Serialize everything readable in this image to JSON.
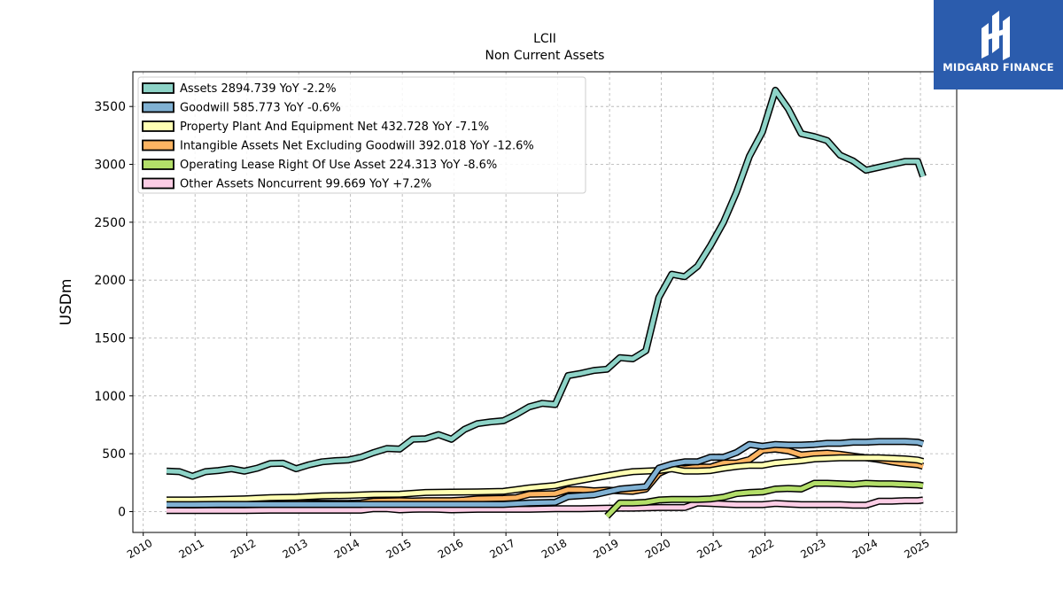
{
  "header": {
    "title": "LCII",
    "subtitle": "Non Current  Assets"
  },
  "logo": {
    "text": "MIDGARD FINANCE",
    "color": "#2b5cad"
  },
  "chart_data": {
    "type": "line",
    "title": "LCII",
    "subtitle": "Non Current  Assets",
    "xlabel": "",
    "ylabel": "USDm",
    "xlim": [
      2009.8,
      2025.7
    ],
    "ylim": [
      -180,
      3800
    ],
    "xticks": [
      "2010",
      "2011",
      "2012",
      "2013",
      "2014",
      "2015",
      "2016",
      "2017",
      "2018",
      "2019",
      "2020",
      "2021",
      "2022",
      "2023",
      "2024",
      "2025"
    ],
    "yticks": [
      0,
      500,
      1000,
      1500,
      2000,
      2500,
      3000,
      3500
    ],
    "grid": true,
    "legend_position": "top-left",
    "series": [
      {
        "name": "Assets",
        "legend": "Assets  2894.739 YoY -2.2%",
        "color": "#8dd3c7",
        "x": [
          2010.45,
          2010.7,
          2010.95,
          2011.2,
          2011.45,
          2011.7,
          2011.95,
          2012.2,
          2012.45,
          2012.7,
          2012.95,
          2013.2,
          2013.45,
          2013.7,
          2013.95,
          2014.2,
          2014.45,
          2014.7,
          2014.95,
          2015.2,
          2015.45,
          2015.7,
          2015.95,
          2016.2,
          2016.45,
          2016.7,
          2016.95,
          2017.2,
          2017.45,
          2017.7,
          2017.95,
          2018.2,
          2018.45,
          2018.7,
          2018.95,
          2019.2,
          2019.45,
          2019.7,
          2019.95,
          2020.2,
          2020.45,
          2020.7,
          2020.95,
          2021.2,
          2021.45,
          2021.7,
          2021.95,
          2022.2,
          2022.45,
          2022.7,
          2022.95,
          2023.2,
          2023.45,
          2023.7,
          2023.95,
          2024.2,
          2024.45,
          2024.7,
          2024.95,
          2025.05
        ],
        "y": [
          350,
          345,
          305,
          345,
          355,
          370,
          350,
          375,
          415,
          418,
          370,
          405,
          430,
          440,
          445,
          470,
          510,
          545,
          540,
          625,
          630,
          665,
          625,
          710,
          760,
          775,
          785,
          840,
          905,
          935,
          925,
          1175,
          1195,
          1220,
          1230,
          1330,
          1320,
          1390,
          1850,
          2050,
          2030,
          2120,
          2300,
          2500,
          2760,
          3070,
          3280,
          3640,
          3480,
          3265,
          3240,
          3205,
          3080,
          3030,
          2950,
          2975,
          3000,
          3025,
          3025,
          2895
        ]
      },
      {
        "name": "Goodwill",
        "legend": "Goodwill  585.773 YoY -0.6%",
        "color": "#80b1d3",
        "x": [
          2010.45,
          2010.95,
          2011.45,
          2011.95,
          2012.45,
          2012.95,
          2013.45,
          2013.95,
          2014.45,
          2014.95,
          2015.45,
          2015.95,
          2016.45,
          2016.95,
          2017.45,
          2017.95,
          2018.2,
          2018.7,
          2019.2,
          2019.7,
          2019.95,
          2020.2,
          2020.45,
          2020.7,
          2020.95,
          2021.2,
          2021.45,
          2021.7,
          2021.95,
          2022.2,
          2022.45,
          2022.7,
          2022.95,
          2023.2,
          2023.45,
          2023.7,
          2023.95,
          2024.2,
          2024.45,
          2024.7,
          2024.95,
          2025.05
        ],
        "y": [
          60,
          60,
          62,
          62,
          62,
          62,
          62,
          62,
          62,
          62,
          62,
          62,
          62,
          62,
          75,
          80,
          130,
          145,
          195,
          215,
          375,
          410,
          430,
          430,
          470,
          470,
          510,
          580,
          565,
          580,
          575,
          575,
          580,
          590,
          590,
          600,
          600,
          605,
          605,
          605,
          600,
          586
        ]
      },
      {
        "name": "Property Plant And Equipment Net",
        "legend": "Property Plant And Equipment Net  432.728 YoY -7.1%",
        "color": "#ffffb3",
        "x": [
          2010.45,
          2010.95,
          2011.45,
          2011.95,
          2012.45,
          2012.95,
          2013.45,
          2013.95,
          2014.45,
          2014.95,
          2015.45,
          2015.95,
          2016.45,
          2016.95,
          2017.2,
          2017.45,
          2017.7,
          2017.95,
          2018.2,
          2018.45,
          2018.7,
          2018.95,
          2019.2,
          2019.45,
          2019.7,
          2019.95,
          2020.2,
          2020.45,
          2020.7,
          2020.95,
          2021.2,
          2021.45,
          2021.7,
          2021.95,
          2022.2,
          2022.45,
          2022.7,
          2022.95,
          2023.2,
          2023.45,
          2023.7,
          2023.95,
          2024.2,
          2024.45,
          2024.7,
          2024.95,
          2025.05
        ],
        "y": [
          100,
          100,
          105,
          110,
          120,
          125,
          135,
          140,
          148,
          150,
          165,
          168,
          170,
          175,
          190,
          205,
          215,
          225,
          250,
          270,
          290,
          310,
          330,
          345,
          350,
          355,
          370,
          350,
          350,
          355,
          375,
          390,
          400,
          400,
          420,
          430,
          440,
          455,
          460,
          465,
          465,
          465,
          465,
          460,
          455,
          445,
          433
        ]
      },
      {
        "name": "Intangible Assets Net Excluding Goodwill",
        "legend": "Intangible Assets Net Excluding Goodwill  392.018 YoY -12.6%",
        "color": "#fdb462",
        "x": [
          2010.45,
          2010.95,
          2011.45,
          2011.7,
          2011.95,
          2012.45,
          2012.95,
          2013.45,
          2013.95,
          2014.2,
          2014.45,
          2014.95,
          2015.2,
          2015.45,
          2015.95,
          2016.2,
          2016.45,
          2016.95,
          2017.2,
          2017.45,
          2017.95,
          2018.2,
          2018.45,
          2018.7,
          2018.95,
          2019.2,
          2019.45,
          2019.7,
          2019.95,
          2020.2,
          2020.45,
          2020.7,
          2020.95,
          2021.2,
          2021.45,
          2021.7,
          2021.95,
          2022.2,
          2022.45,
          2022.7,
          2022.95,
          2023.2,
          2023.45,
          2023.7,
          2023.95,
          2024.2,
          2024.45,
          2024.7,
          2024.95,
          2025.05
        ],
        "y": [
          60,
          58,
          62,
          85,
          82,
          80,
          75,
          72,
          70,
          75,
          90,
          95,
          92,
          95,
          95,
          100,
          110,
          115,
          120,
          150,
          155,
          190,
          190,
          180,
          185,
          180,
          175,
          195,
          330,
          380,
          370,
          385,
          385,
          420,
          420,
          450,
          530,
          540,
          525,
          490,
          500,
          505,
          495,
          480,
          465,
          450,
          430,
          415,
          405,
          392
        ]
      },
      {
        "name": "Operating Lease Right Of Use Asset",
        "legend": "Operating Lease Right Of Use Asset  224.313 YoY -8.6%",
        "color": "#b3de69",
        "x": [
          2018.95,
          2019.2,
          2019.45,
          2019.7,
          2019.95,
          2020.2,
          2020.45,
          2020.7,
          2020.95,
          2021.2,
          2021.45,
          2021.7,
          2021.95,
          2022.2,
          2022.45,
          2022.7,
          2022.95,
          2023.2,
          2023.45,
          2023.7,
          2023.95,
          2024.2,
          2024.45,
          2024.7,
          2024.95,
          2025.05
        ],
        "y": [
          -40,
          75,
          75,
          80,
          100,
          105,
          105,
          105,
          110,
          125,
          155,
          165,
          170,
          195,
          200,
          195,
          245,
          245,
          240,
          235,
          245,
          240,
          240,
          235,
          230,
          224
        ]
      },
      {
        "name": "Other Assets Noncurrent",
        "legend": "Other Assets Noncurrent  99.669 YoY +7.2%",
        "color": "#fccde5",
        "x": [
          2010.45,
          2010.95,
          2011.45,
          2011.95,
          2012.45,
          2012.95,
          2013.45,
          2013.95,
          2014.2,
          2014.45,
          2014.7,
          2014.95,
          2015.2,
          2015.45,
          2015.7,
          2015.95,
          2016.45,
          2016.95,
          2017.45,
          2017.95,
          2018.45,
          2018.95,
          2019.2,
          2019.45,
          2019.95,
          2020.2,
          2020.45,
          2020.7,
          2020.95,
          2021.2,
          2021.45,
          2021.7,
          2021.95,
          2022.2,
          2022.45,
          2022.7,
          2022.95,
          2023.2,
          2023.45,
          2023.7,
          2023.95,
          2024.2,
          2024.45,
          2024.7,
          2024.95,
          2025.05
        ],
        "y": [
          10,
          10,
          10,
          10,
          12,
          12,
          12,
          12,
          12,
          25,
          25,
          15,
          20,
          22,
          20,
          15,
          20,
          20,
          20,
          25,
          25,
          30,
          30,
          30,
          35,
          35,
          35,
          75,
          70,
          65,
          60,
          60,
          60,
          70,
          65,
          60,
          60,
          60,
          60,
          55,
          55,
          90,
          90,
          95,
          95,
          100
        ]
      }
    ]
  }
}
